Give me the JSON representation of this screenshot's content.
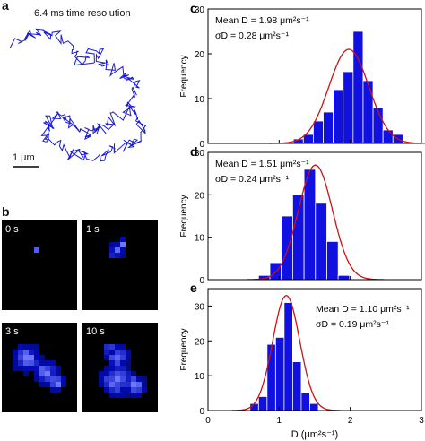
{
  "panel_a": {
    "letter": "a",
    "caption": "6.4 ms time resolution",
    "scale_label": "1 μm"
  },
  "panel_b": {
    "letter": "b",
    "frames": [
      {
        "label": "0 s"
      },
      {
        "label": "1 s"
      },
      {
        "label": "3 s"
      },
      {
        "label": "10 s"
      }
    ]
  },
  "colors": {
    "bar": "#1010e0",
    "fit": "#d01010",
    "trajectory": "#1a1ad8",
    "frame_bg": "#000000"
  },
  "chart_data": [
    {
      "id": "c",
      "letter": "c",
      "type": "bar",
      "ylabel": "Frequency",
      "ylim": [
        0,
        30
      ],
      "yticks": [
        0,
        10,
        20,
        30
      ],
      "xlim": [
        0,
        3
      ],
      "annotation": [
        "Mean D = 1.98 μm²s⁻¹",
        "σD = 0.28 μm²s⁻¹"
      ],
      "bins": [
        1.27,
        1.41,
        1.55,
        1.69,
        1.83,
        1.97,
        2.11,
        2.25,
        2.39,
        2.53,
        2.67
      ],
      "values": [
        1,
        2,
        5,
        7,
        12,
        16,
        25,
        14,
        8,
        3,
        2
      ],
      "fit": {
        "mean": 1.98,
        "sd": 0.28,
        "peak": 21
      }
    },
    {
      "id": "d",
      "letter": "d",
      "type": "bar",
      "ylabel": "Frequency",
      "ylim": [
        0,
        30
      ],
      "yticks": [
        0,
        10,
        20,
        30
      ],
      "xlim": [
        0,
        3
      ],
      "annotation": [
        "Mean D = 1.51 μm²s⁻¹",
        "σD = 0.24 μm²s⁻¹"
      ],
      "bins": [
        0.79,
        0.95,
        1.11,
        1.27,
        1.43,
        1.59,
        1.75,
        1.91
      ],
      "values": [
        1,
        4,
        15,
        20,
        26,
        18,
        9,
        1
      ],
      "fit": {
        "mean": 1.51,
        "sd": 0.24,
        "peak": 27
      }
    },
    {
      "id": "e",
      "letter": "e",
      "type": "bar",
      "ylabel": "Frequency",
      "ylim": [
        0,
        35
      ],
      "yticks": [
        0,
        10,
        20,
        30
      ],
      "xlim": [
        0,
        3
      ],
      "xticks": [
        0,
        1,
        2,
        3
      ],
      "xlabel": "D (μm²s⁻¹)",
      "annotation": [
        "Mean D = 1.10 μm²s⁻¹",
        "σD = 0.19 μm²s⁻¹"
      ],
      "bins": [
        0.65,
        0.77,
        0.89,
        1.01,
        1.13,
        1.25,
        1.37,
        1.49
      ],
      "values": [
        2,
        4,
        19,
        21,
        31,
        14,
        5,
        2
      ],
      "fit": {
        "mean": 1.1,
        "sd": 0.19,
        "peak": 33
      }
    }
  ]
}
